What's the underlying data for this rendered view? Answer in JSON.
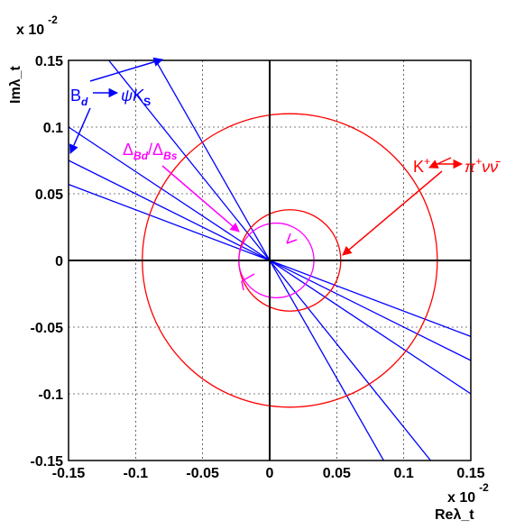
{
  "chart_data": {
    "type": "line",
    "title": "",
    "xlabel": "Reλ_t",
    "ylabel": "Imλ_t",
    "x_multiplier": "x 10",
    "x_multiplier_exp": "-2",
    "y_multiplier": "x 10",
    "y_multiplier_exp": "-2",
    "xlim": [
      -0.15,
      0.15
    ],
    "ylim": [
      -0.15,
      0.15
    ],
    "x_ticks": [
      -0.15,
      -0.1,
      -0.05,
      0,
      0.05,
      0.1,
      0.15
    ],
    "x_tick_labels": [
      "-0.15",
      "-0.1",
      "-0.05",
      "0",
      "0.05",
      "0.1",
      "0.15"
    ],
    "y_ticks": [
      -0.15,
      -0.1,
      -0.05,
      0,
      0.05,
      0.1,
      0.15
    ],
    "y_tick_labels": [
      "-0.15",
      "-0.1",
      "-0.05",
      "0",
      "0.05",
      "0.1",
      "0.15"
    ],
    "grid": true,
    "series": [
      {
        "role": "psiKs-lines",
        "color": "#0000ff",
        "lines": [
          {
            "x": [
              -0.085,
              0.085
            ],
            "y": [
              0.15,
              -0.15
            ]
          },
          {
            "x": [
              -0.12,
              0.12
            ],
            "y": [
              0.15,
              -0.15
            ]
          },
          {
            "x": [
              -0.15,
              0.15
            ],
            "y": [
              0.1,
              -0.1
            ]
          },
          {
            "x": [
              -0.15,
              0.15
            ],
            "y": [
              0.057,
              -0.057
            ]
          },
          {
            "x": [
              -0.15,
              0.15
            ],
            "y": [
              0.075,
              -0.075
            ]
          }
        ]
      },
      {
        "role": "kaon-circles",
        "color": "#ff0000",
        "circles": [
          {
            "cx": 0.015,
            "cy": 0,
            "r": 0.11
          },
          {
            "cx": 0.015,
            "cy": 0,
            "r": 0.038
          }
        ]
      },
      {
        "role": "ratio-circle",
        "color": "#ff00ff",
        "circles": [
          {
            "cx": 0.005,
            "cy": 0,
            "r": 0.028
          }
        ]
      }
    ],
    "annotations": [
      {
        "id": "bd",
        "color": "#0000ff",
        "main": "B",
        "sub": "d",
        "arrow_to": "ψK",
        "sub2": "S"
      },
      {
        "id": "kaon",
        "color": "#ff0000",
        "main": "K",
        "sup": "+",
        "arrow_to": "π",
        "sup2": "+",
        "tail": "νν̄"
      },
      {
        "id": "delta",
        "color": "#ff00ff",
        "main": "Δ",
        "sub": "Bd",
        "slash": "/",
        "main2": "Δ",
        "sub2": "Bs"
      }
    ],
    "colors": {
      "axis": "#000000",
      "grid": "#000000",
      "blue": "#0000ff",
      "red": "#ff0000",
      "magenta": "#ff00ff"
    }
  }
}
